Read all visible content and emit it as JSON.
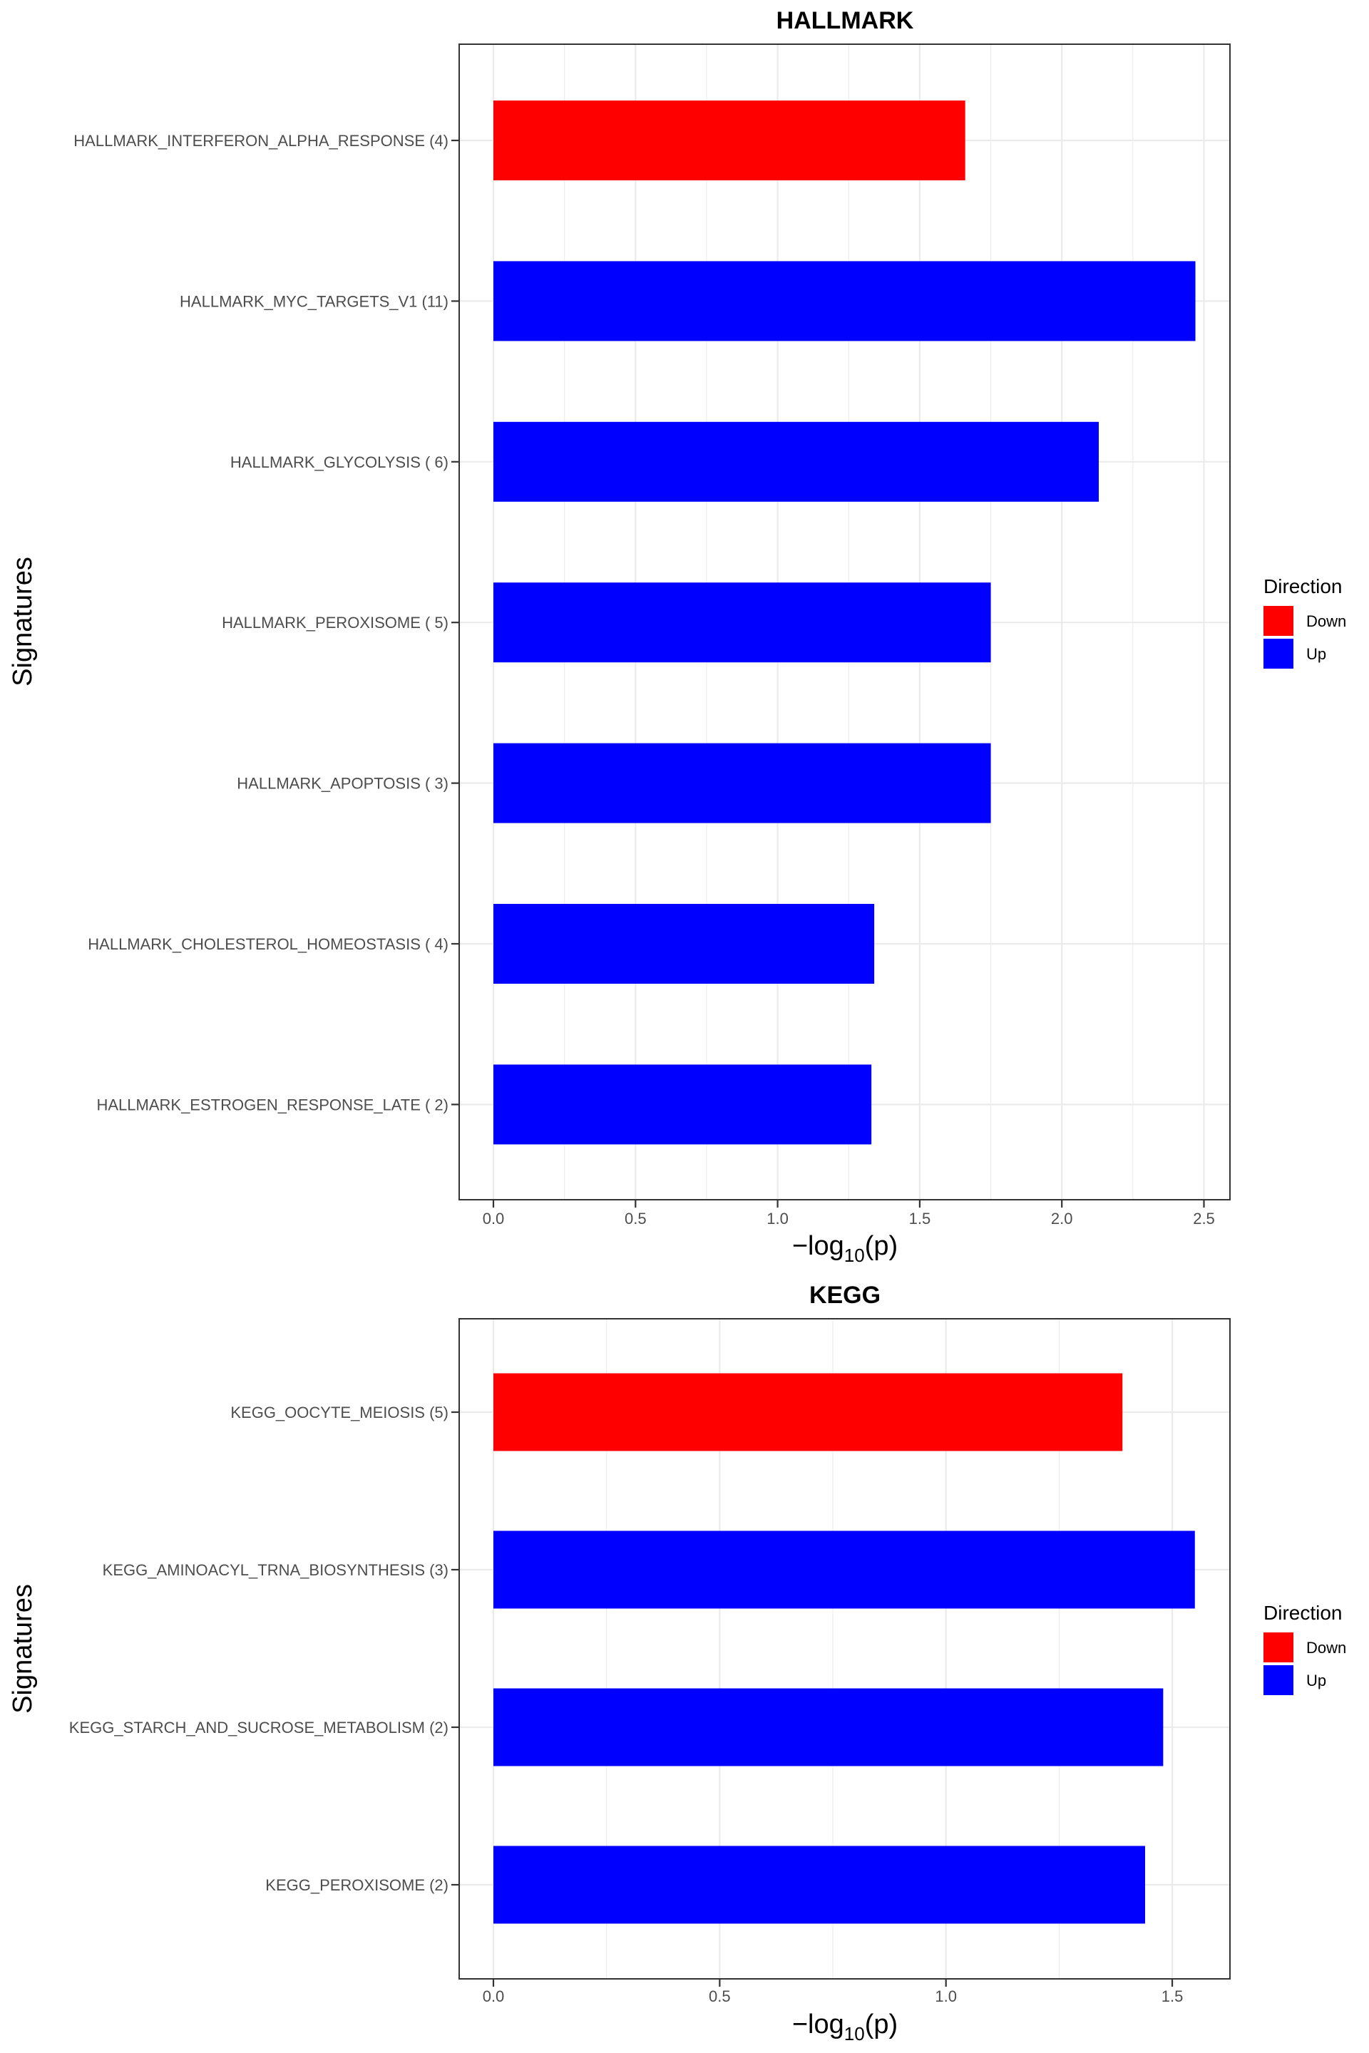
{
  "chart_data": [
    {
      "type": "bar",
      "orientation": "horizontal",
      "title": "HALLMARK",
      "xlabel": "-log10(p)",
      "xlabel_parts": {
        "prefix": "−log",
        "sub": "10",
        "suffix": "(p)"
      },
      "ylabel": "Signatures",
      "xlim": [
        0,
        2.5
      ],
      "x_ticks": [
        0.0,
        0.5,
        1.0,
        1.5,
        2.0,
        2.5
      ],
      "x_tick_labels": [
        "0.0",
        "0.5",
        "1.0",
        "1.5",
        "2.0",
        "2.5"
      ],
      "grid": true,
      "legend": {
        "title": "Direction",
        "placement": "right",
        "entries": [
          {
            "label": "Down",
            "color": "#ff0000"
          },
          {
            "label": "Up",
            "color": "#0000ff"
          }
        ]
      },
      "categories": [
        "HALLMARK_INTERFERON_ALPHA_RESPONSE (4)",
        "HALLMARK_MYC_TARGETS_V1 (11)",
        "HALLMARK_GLYCOLYSIS ( 6)",
        "HALLMARK_PEROXISOME ( 5)",
        "HALLMARK_APOPTOSIS ( 3)",
        "HALLMARK_CHOLESTEROL_HOMEOSTASIS ( 4)",
        "HALLMARK_ESTROGEN_RESPONSE_LATE ( 2)"
      ],
      "values": [
        1.66,
        2.47,
        2.13,
        1.75,
        1.75,
        1.34,
        1.33
      ],
      "direction": [
        "Down",
        "Up",
        "Up",
        "Up",
        "Up",
        "Up",
        "Up"
      ]
    },
    {
      "type": "bar",
      "orientation": "horizontal",
      "title": "KEGG",
      "xlabel": "-log10(p)",
      "xlabel_parts": {
        "prefix": "−log",
        "sub": "10",
        "suffix": "(p)"
      },
      "ylabel": "Signatures",
      "xlim": [
        0,
        1.55
      ],
      "x_ticks": [
        0.0,
        0.5,
        1.0,
        1.5
      ],
      "x_tick_labels": [
        "0.0",
        "0.5",
        "1.0",
        "1.5"
      ],
      "grid": true,
      "legend": {
        "title": "Direction",
        "placement": "right",
        "entries": [
          {
            "label": "Down",
            "color": "#ff0000"
          },
          {
            "label": "Up",
            "color": "#0000ff"
          }
        ]
      },
      "categories": [
        "KEGG_OOCYTE_MEIOSIS (5)",
        "KEGG_AMINOACYL_TRNA_BIOSYNTHESIS (3)",
        "KEGG_STARCH_AND_SUCROSE_METABOLISM (2)",
        "KEGG_PEROXISOME (2)"
      ],
      "values": [
        1.39,
        1.55,
        1.48,
        1.44
      ],
      "direction": [
        "Down",
        "Up",
        "Up",
        "Up"
      ]
    }
  ]
}
